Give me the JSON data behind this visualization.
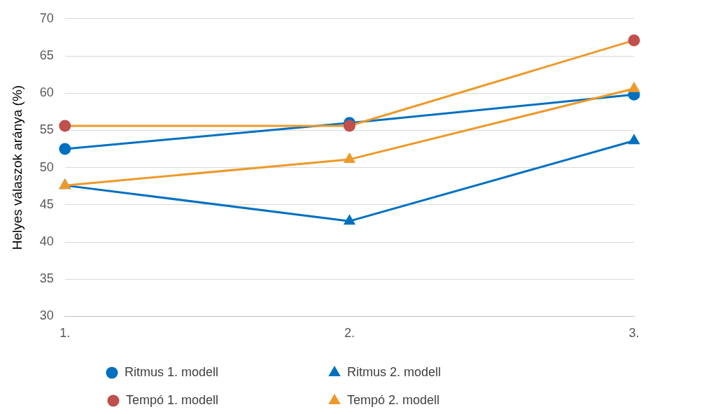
{
  "chart_data": {
    "type": "line",
    "ylabel": "Helyes válaszok aránya (%)",
    "categories": [
      "1.",
      "2.",
      "3."
    ],
    "series": [
      {
        "name": "Ritmus 1. modell",
        "color": "#0070c0",
        "marker": "circle",
        "values": [
          52.5,
          56.0,
          59.8
        ]
      },
      {
        "name": "Ritmus 2. modell",
        "color": "#0070c0",
        "marker": "triangle",
        "values": [
          47.6,
          42.8,
          53.6
        ]
      },
      {
        "name": "Tempó 1. modell",
        "color": "#ed9a2b",
        "colors": [
          "#c0504d",
          "#c0504d",
          "#c0504d"
        ],
        "marker": "circle",
        "values": [
          55.6,
          55.6,
          67.1
        ]
      },
      {
        "name": "Tempó 2. modell",
        "color": "#ed9a2b",
        "marker": "triangle",
        "values": [
          47.6,
          51.1,
          60.6
        ]
      }
    ],
    "ylim": [
      30,
      70
    ],
    "yticks": [
      30,
      35,
      40,
      45,
      50,
      55,
      60,
      65,
      70
    ],
    "grid": "y",
    "legend": "bottom"
  }
}
